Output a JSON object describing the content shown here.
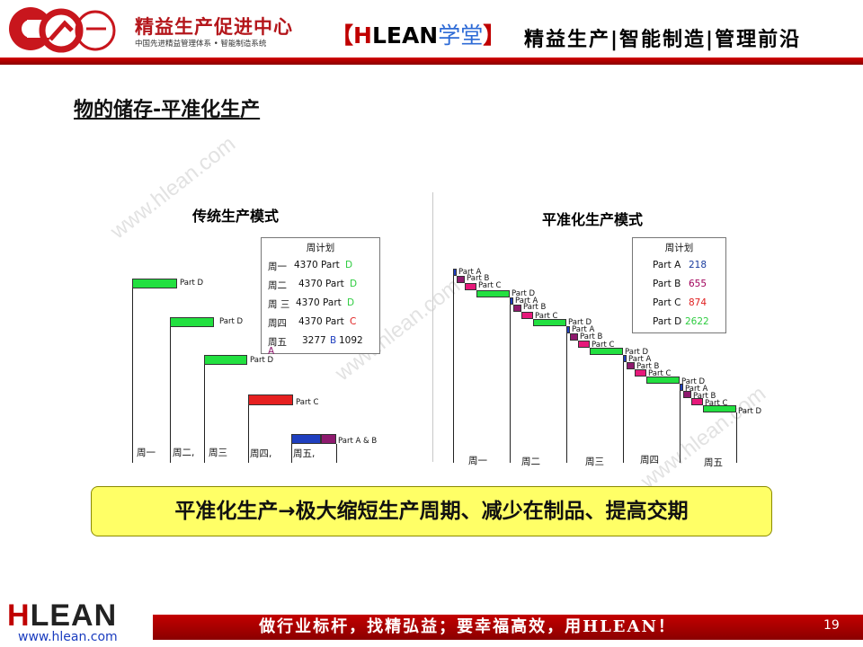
{
  "header": {
    "company_name": "精益生产促进中心",
    "company_subtitle": "中国先进精益管理体系 • 智能制造系统",
    "brand_open": "【",
    "brand_h": "H",
    "brand_lean": "LEAN",
    "brand_xt": "学堂",
    "brand_close": "】",
    "slogan": "精益生产|智能制造|管理前沿"
  },
  "page_title": "物的储存-平准化生产",
  "watermark": "www.hlean.com",
  "traditional": {
    "title": "传统生产模式",
    "plan_title": "周计划",
    "plan_rows": [
      {
        "day": "周一",
        "qty": "4370 Part",
        "part": "D",
        "part_color": "#2ecc40"
      },
      {
        "day": "周二",
        "qty": "4370 Part",
        "part": "D",
        "part_color": "#2ecc40"
      },
      {
        "day": "周 三",
        "qty": "4370 Part",
        "part": "D",
        "part_color": "#2ecc40"
      },
      {
        "day": "周四",
        "qty": "4370 Part",
        "part": "C",
        "part_color": "#e02020"
      }
    ],
    "plan_row5": {
      "day": "周五",
      "qty": "3277",
      "b_part": "B",
      "qty2": "1092",
      "a_part": "A"
    },
    "bar_labels": {
      "d1": "Part D",
      "d2": "Part D",
      "d3": "Part D",
      "c": "Part C",
      "ab": "Part A & B"
    },
    "days": [
      "周一",
      "周二,",
      "周三",
      "周四,",
      "周五,"
    ]
  },
  "leveled": {
    "title": "平准化生产模式",
    "plan_title": "周计划",
    "plan_rows": [
      {
        "part": "Part A",
        "qty": "218",
        "color": "#1a3c9e"
      },
      {
        "part": "Part B",
        "qty": "655",
        "color": "#a0005a"
      },
      {
        "part": "Part C",
        "qty": "874",
        "color": "#e02020"
      },
      {
        "part": "Part D",
        "qty": "2622",
        "color": "#2ecc40"
      }
    ],
    "bar_labels": {
      "a": "Part A",
      "b": "Part B",
      "c": "Part C",
      "d": "Part D"
    },
    "days": [
      "周一",
      "周二",
      "周三",
      "周四",
      "周五"
    ]
  },
  "conclusion": "平准化生产→极大缩短生产周期、减少在制品、提高交期",
  "footer": {
    "logo_h": "H",
    "logo_rest": "LEAN",
    "url": "www.hlean.com",
    "slogan": "做行业标杆，找精弘益；要幸福高效，用HLEAN！",
    "page_number": "19"
  },
  "colors": {
    "part_a": "#1f3fbf",
    "part_b": "#8e1a6e",
    "part_c": "#e62020",
    "part_d": "#22e040",
    "header_red": "#c00000",
    "conclusion_bg": "#ffff66"
  }
}
